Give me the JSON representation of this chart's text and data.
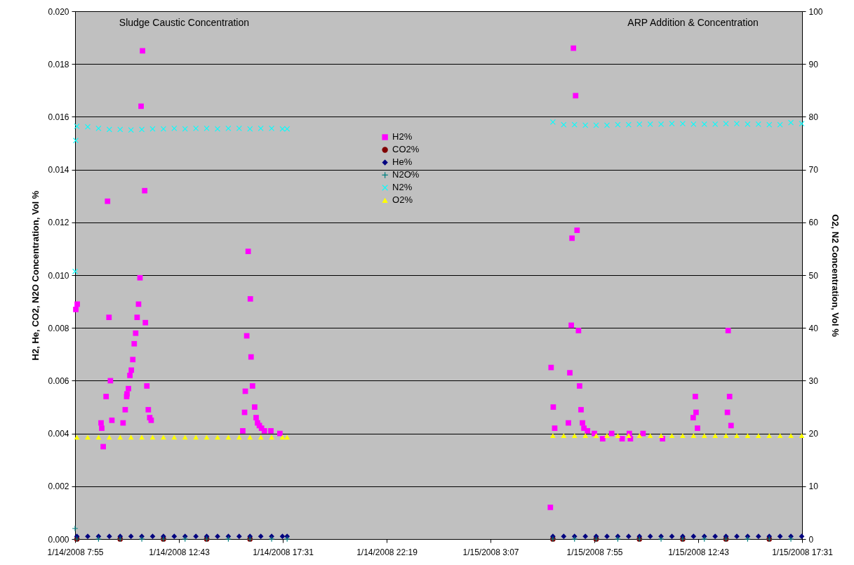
{
  "chart_data": {
    "type": "scatter",
    "ylabel": "H2, He, CO2, N2O Concentration, Vol %",
    "y2label": "O2, N2 Concentration, Vol %",
    "annotations": [
      "Sludge Caustic Concentration",
      "ARP Addition & Concentration"
    ],
    "xlim": [
      "2008-01-14T07:55",
      "2008-01-15T17:31"
    ],
    "xticks": [
      {
        "value": "2008-01-14T07:55",
        "label": "1/14/2008 7:55"
      },
      {
        "value": "2008-01-14T12:43",
        "label": "1/14/2008 12:43"
      },
      {
        "value": "2008-01-14T17:31",
        "label": "1/14/2008 17:31"
      },
      {
        "value": "2008-01-14T22:19",
        "label": "1/14/2008 22:19"
      },
      {
        "value": "2008-01-15T03:07",
        "label": "1/15/2008 3:07"
      },
      {
        "value": "2008-01-15T07:55",
        "label": "1/15/2008 7:55"
      },
      {
        "value": "2008-01-15T12:43",
        "label": "1/15/2008 12:43"
      },
      {
        "value": "2008-01-15T17:31",
        "label": "1/15/2008 17:31"
      }
    ],
    "ylim": [
      0,
      0.02
    ],
    "yticks": [
      {
        "value": 0,
        "label": "0.000"
      },
      {
        "value": 0.002,
        "label": "0.002"
      },
      {
        "value": 0.004,
        "label": "0.004"
      },
      {
        "value": 0.006,
        "label": "0.006"
      },
      {
        "value": 0.008,
        "label": "0.008"
      },
      {
        "value": 0.01,
        "label": "0.010"
      },
      {
        "value": 0.012,
        "label": "0.012"
      },
      {
        "value": 0.014,
        "label": "0.014"
      },
      {
        "value": 0.016,
        "label": "0.016"
      },
      {
        "value": 0.018,
        "label": "0.018"
      },
      {
        "value": 0.02,
        "label": "0.020"
      }
    ],
    "y2lim": [
      0,
      100
    ],
    "y2ticks": [
      0,
      10,
      20,
      30,
      40,
      50,
      60,
      70,
      80,
      90,
      100
    ],
    "grid": "y",
    "legend": "top",
    "series": [
      {
        "name": "H2%",
        "color": "#ff00ff",
        "marker": "square",
        "x": [
          "2008-01-14T07:57",
          "2008-01-14T08:01",
          "2008-01-14T09:07",
          "2008-01-14T09:09",
          "2008-01-14T09:13",
          "2008-01-14T09:21",
          "2008-01-14T09:25",
          "2008-01-14T09:29",
          "2008-01-14T09:33",
          "2008-01-14T09:37",
          "2008-01-14T10:08",
          "2008-01-14T10:14",
          "2008-01-14T10:18",
          "2008-01-14T10:19",
          "2008-01-14T10:23",
          "2008-01-14T10:27",
          "2008-01-14T10:31",
          "2008-01-14T10:35",
          "2008-01-14T10:39",
          "2008-01-14T10:43",
          "2008-01-14T10:47",
          "2008-01-14T10:51",
          "2008-01-14T10:55",
          "2008-01-14T10:58",
          "2008-01-14T11:02",
          "2008-01-14T11:08",
          "2008-01-14T11:10",
          "2008-01-14T11:14",
          "2008-01-14T11:18",
          "2008-01-14T11:22",
          "2008-01-14T11:26",
          "2008-01-14T15:40",
          "2008-01-14T15:45",
          "2008-01-14T15:47",
          "2008-01-14T15:51",
          "2008-01-14T15:55",
          "2008-01-14T16:01",
          "2008-01-14T16:03",
          "2008-01-14T16:07",
          "2008-01-14T16:13",
          "2008-01-14T16:17",
          "2008-01-14T16:21",
          "2008-01-14T16:26",
          "2008-01-14T16:32",
          "2008-01-14T16:40",
          "2008-01-14T16:58",
          "2008-01-14T17:23",
          "2008-01-15T05:53",
          "2008-01-15T05:55",
          "2008-01-15T06:01",
          "2008-01-15T06:05",
          "2008-01-15T06:43",
          "2008-01-15T06:47",
          "2008-01-15T06:51",
          "2008-01-15T06:53",
          "2008-01-15T06:57",
          "2008-01-15T07:03",
          "2008-01-15T07:07",
          "2008-01-15T07:11",
          "2008-01-15T07:14",
          "2008-01-15T07:18",
          "2008-01-15T07:22",
          "2008-01-15T07:26",
          "2008-01-15T07:36",
          "2008-01-15T07:55",
          "2008-01-15T08:18",
          "2008-01-15T08:43",
          "2008-01-15T09:12",
          "2008-01-15T09:32",
          "2008-01-15T09:35",
          "2008-01-15T10:10",
          "2008-01-15T11:04",
          "2008-01-15T12:29",
          "2008-01-15T12:35",
          "2008-01-15T12:37",
          "2008-01-15T12:41",
          "2008-01-15T14:04",
          "2008-01-15T14:06",
          "2008-01-15T14:10",
          "2008-01-15T14:14"
        ],
        "values": [
          0.0087,
          0.0089,
          0.0044,
          0.0042,
          0.0035,
          0.0054,
          0.0128,
          0.0084,
          0.006,
          0.0045,
          0.0044,
          0.0049,
          0.0054,
          0.0055,
          0.0057,
          0.0062,
          0.0064,
          0.0068,
          0.0074,
          0.0078,
          0.0084,
          0.0089,
          0.0099,
          0.0164,
          0.0185,
          0.0132,
          0.0082,
          0.0058,
          0.0049,
          0.0046,
          0.0045,
          0.0041,
          0.0048,
          0.0056,
          0.0077,
          0.0109,
          0.0091,
          0.0069,
          0.0058,
          0.005,
          0.0046,
          0.0044,
          0.0043,
          0.0042,
          0.0041,
          0.0041,
          0.004,
          0.0012,
          0.0065,
          0.005,
          0.0042,
          0.0044,
          0.0063,
          0.0081,
          0.0114,
          0.0186,
          0.0168,
          0.0117,
          0.0079,
          0.0058,
          0.0049,
          0.0044,
          0.0042,
          0.0041,
          0.004,
          0.0038,
          0.004,
          0.0038,
          0.004,
          0.0038,
          0.004,
          0.0038,
          0.0046,
          0.0054,
          0.0048,
          0.0042,
          0.0048,
          0.0079,
          0.0054,
          0.0043
        ]
      },
      {
        "name": "CO2%",
        "color": "#800000",
        "marker": "circle",
        "x": [
          "2008-01-14T08:00",
          "2008-01-14T10:00",
          "2008-01-14T12:00",
          "2008-01-14T14:00",
          "2008-01-14T16:00",
          "2008-01-15T06:00",
          "2008-01-15T08:00",
          "2008-01-15T10:00",
          "2008-01-15T12:00",
          "2008-01-15T14:00",
          "2008-01-15T16:00"
        ],
        "values": [
          0,
          0,
          0,
          0,
          0,
          0,
          0,
          0,
          0,
          0,
          0
        ]
      },
      {
        "name": "He%",
        "color": "#000080",
        "marker": "diamond",
        "x": [
          "2008-01-14T08:00",
          "2008-01-14T08:30",
          "2008-01-14T09:00",
          "2008-01-14T09:30",
          "2008-01-14T10:00",
          "2008-01-14T10:30",
          "2008-01-14T11:00",
          "2008-01-14T11:30",
          "2008-01-14T12:00",
          "2008-01-14T12:30",
          "2008-01-14T13:00",
          "2008-01-14T13:30",
          "2008-01-14T14:00",
          "2008-01-14T14:30",
          "2008-01-14T15:00",
          "2008-01-14T15:30",
          "2008-01-14T16:00",
          "2008-01-14T16:30",
          "2008-01-14T17:00",
          "2008-01-14T17:30",
          "2008-01-14T17:43",
          "2008-01-15T06:00",
          "2008-01-15T06:30",
          "2008-01-15T07:00",
          "2008-01-15T07:30",
          "2008-01-15T08:00",
          "2008-01-15T08:30",
          "2008-01-15T09:00",
          "2008-01-15T09:30",
          "2008-01-15T10:00",
          "2008-01-15T10:30",
          "2008-01-15T11:00",
          "2008-01-15T11:30",
          "2008-01-15T12:00",
          "2008-01-15T12:30",
          "2008-01-15T13:00",
          "2008-01-15T13:30",
          "2008-01-15T14:00",
          "2008-01-15T14:30",
          "2008-01-15T15:00",
          "2008-01-15T15:30",
          "2008-01-15T16:00",
          "2008-01-15T16:30",
          "2008-01-15T17:00",
          "2008-01-15T17:30"
        ],
        "values": [
          0.0001,
          0.0001,
          0.0001,
          0.0001,
          0.0001,
          0.0001,
          0.0001,
          0.0001,
          0.0001,
          0.0001,
          0.0001,
          0.0001,
          0.0001,
          0.0001,
          0.0001,
          0.0001,
          0.0001,
          0.0001,
          0.0001,
          0.0001,
          0.0001,
          0.0001,
          0.0001,
          0.0001,
          0.0001,
          0.0001,
          0.0001,
          0.0001,
          0.0001,
          0.0001,
          0.0001,
          0.0001,
          0.0001,
          0.0001,
          0.0001,
          0.0001,
          0.0001,
          0.0001,
          0.0001,
          0.0001,
          0.0001,
          0.0001,
          0.0001,
          0.0001,
          0.0001
        ]
      },
      {
        "name": "N2O%",
        "color": "#008080",
        "marker": "cross",
        "x": [
          "2008-01-14T07:55",
          "2008-01-14T08:00",
          "2008-01-14T09:00",
          "2008-01-14T10:00",
          "2008-01-14T11:00",
          "2008-01-14T12:00",
          "2008-01-14T13:00",
          "2008-01-14T14:00",
          "2008-01-14T15:00",
          "2008-01-14T16:00",
          "2008-01-14T17:00",
          "2008-01-14T17:43",
          "2008-01-15T06:00",
          "2008-01-15T07:00",
          "2008-01-15T08:00",
          "2008-01-15T09:00",
          "2008-01-15T10:00",
          "2008-01-15T11:00",
          "2008-01-15T12:00",
          "2008-01-15T13:00",
          "2008-01-15T14:00",
          "2008-01-15T15:00",
          "2008-01-15T16:00",
          "2008-01-15T17:00"
        ],
        "values": [
          0.0004,
          0,
          0,
          0,
          0,
          0,
          0,
          0,
          0,
          0,
          0,
          0,
          0,
          0,
          0,
          0,
          0,
          0,
          0,
          0,
          0,
          0,
          0,
          0
        ]
      },
      {
        "name": "N2%",
        "color": "#00ffff",
        "marker": "x",
        "axis": "y2",
        "x": [
          "2008-01-14T07:55",
          "2008-01-14T07:57",
          "2008-01-14T08:00",
          "2008-01-14T08:30",
          "2008-01-14T09:00",
          "2008-01-14T09:30",
          "2008-01-14T10:00",
          "2008-01-14T10:30",
          "2008-01-14T11:00",
          "2008-01-14T11:30",
          "2008-01-14T12:00",
          "2008-01-14T12:30",
          "2008-01-14T13:00",
          "2008-01-14T13:30",
          "2008-01-14T14:00",
          "2008-01-14T14:30",
          "2008-01-14T15:00",
          "2008-01-14T15:30",
          "2008-01-14T16:00",
          "2008-01-14T16:30",
          "2008-01-14T17:00",
          "2008-01-14T17:30",
          "2008-01-14T17:43",
          "2008-01-15T06:00",
          "2008-01-15T06:30",
          "2008-01-15T07:00",
          "2008-01-15T07:30",
          "2008-01-15T08:00",
          "2008-01-15T08:30",
          "2008-01-15T09:00",
          "2008-01-15T09:30",
          "2008-01-15T10:00",
          "2008-01-15T10:30",
          "2008-01-15T11:00",
          "2008-01-15T11:30",
          "2008-01-15T12:00",
          "2008-01-15T12:30",
          "2008-01-15T13:00",
          "2008-01-15T13:30",
          "2008-01-15T14:00",
          "2008-01-15T14:30",
          "2008-01-15T15:00",
          "2008-01-15T15:30",
          "2008-01-15T16:00",
          "2008-01-15T16:30",
          "2008-01-15T17:00",
          "2008-01-15T17:30"
        ],
        "values": [
          50.7,
          75.5,
          78.2,
          78.1,
          77.8,
          77.6,
          77.6,
          77.5,
          77.6,
          77.7,
          77.7,
          77.8,
          77.7,
          77.8,
          77.8,
          77.7,
          77.8,
          77.8,
          77.7,
          77.8,
          77.8,
          77.7,
          77.7,
          79,
          78.5,
          78.5,
          78.4,
          78.4,
          78.4,
          78.5,
          78.5,
          78.6,
          78.6,
          78.6,
          78.7,
          78.7,
          78.6,
          78.6,
          78.6,
          78.7,
          78.7,
          78.6,
          78.6,
          78.5,
          78.5,
          78.9,
          78.7
        ]
      },
      {
        "name": "O2%",
        "color": "#ffff00",
        "marker": "triangle",
        "axis": "y2",
        "x": [
          "2008-01-14T08:00",
          "2008-01-14T08:30",
          "2008-01-14T09:00",
          "2008-01-14T09:30",
          "2008-01-14T10:00",
          "2008-01-14T10:30",
          "2008-01-14T11:00",
          "2008-01-14T11:30",
          "2008-01-14T12:00",
          "2008-01-14T12:30",
          "2008-01-14T13:00",
          "2008-01-14T13:30",
          "2008-01-14T14:00",
          "2008-01-14T14:30",
          "2008-01-14T15:00",
          "2008-01-14T15:30",
          "2008-01-14T16:00",
          "2008-01-14T16:30",
          "2008-01-14T17:00",
          "2008-01-14T17:30",
          "2008-01-14T17:43",
          "2008-01-15T06:00",
          "2008-01-15T06:30",
          "2008-01-15T07:00",
          "2008-01-15T07:30",
          "2008-01-15T08:00",
          "2008-01-15T08:30",
          "2008-01-15T09:00",
          "2008-01-15T09:30",
          "2008-01-15T10:00",
          "2008-01-15T10:30",
          "2008-01-15T11:00",
          "2008-01-15T11:30",
          "2008-01-15T12:00",
          "2008-01-15T12:30",
          "2008-01-15T13:00",
          "2008-01-15T13:30",
          "2008-01-15T14:00",
          "2008-01-15T14:30",
          "2008-01-15T15:00",
          "2008-01-15T15:30",
          "2008-01-15T16:00",
          "2008-01-15T16:30",
          "2008-01-15T17:00",
          "2008-01-15T17:30"
        ],
        "values": [
          19.3,
          19.3,
          19.3,
          19.3,
          19.3,
          19.3,
          19.3,
          19.3,
          19.3,
          19.3,
          19.3,
          19.3,
          19.3,
          19.3,
          19.3,
          19.3,
          19.3,
          19.3,
          19.3,
          19.3,
          19.3,
          19.6,
          19.6,
          19.6,
          19.6,
          19.6,
          19.6,
          19.6,
          19.6,
          19.6,
          19.6,
          19.6,
          19.6,
          19.6,
          19.6,
          19.6,
          19.6,
          19.6,
          19.6,
          19.6,
          19.6,
          19.6,
          19.6,
          19.6,
          19.6
        ]
      }
    ]
  }
}
